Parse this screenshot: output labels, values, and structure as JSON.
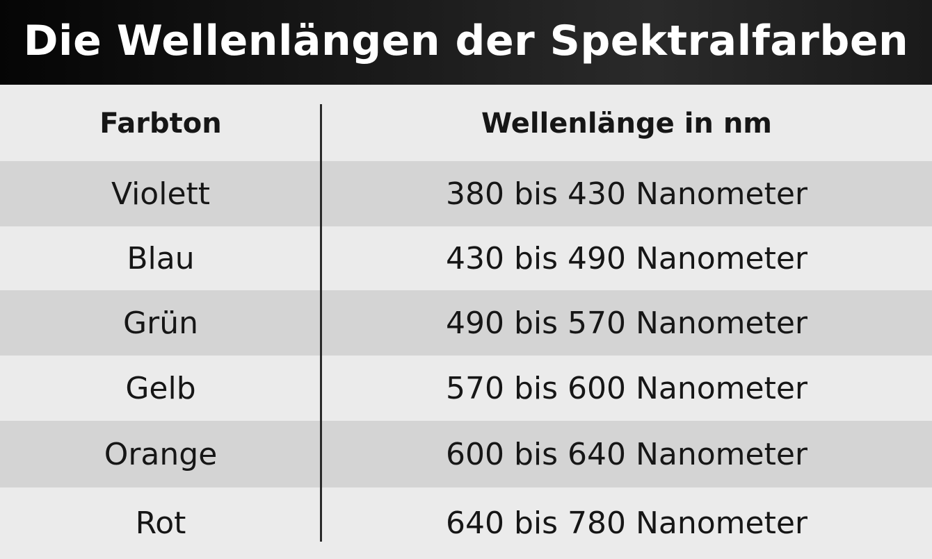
{
  "title": "Die Wellenlängen der Spektralfarben",
  "table": {
    "headers": [
      "Farbton",
      "Wellenlänge in nm"
    ],
    "rows": [
      [
        "Violett",
        "380 bis 430 Nanometer"
      ],
      [
        "Blau",
        "430 bis 490 Nanometer"
      ],
      [
        "Grün",
        "490 bis 570 Nanometer"
      ],
      [
        "Gelb",
        "570 bis 600 Nanometer"
      ],
      [
        "Orange",
        "600 bis 640 Nanometer"
      ],
      [
        "Rot",
        "640 bis 780 Nanometer"
      ]
    ]
  },
  "colors": {
    "title_background": "#111111",
    "title_text": "#ffffff",
    "row_shade": "#d4d4d4",
    "row_plain": "#ebebeb",
    "text": "#161616"
  }
}
